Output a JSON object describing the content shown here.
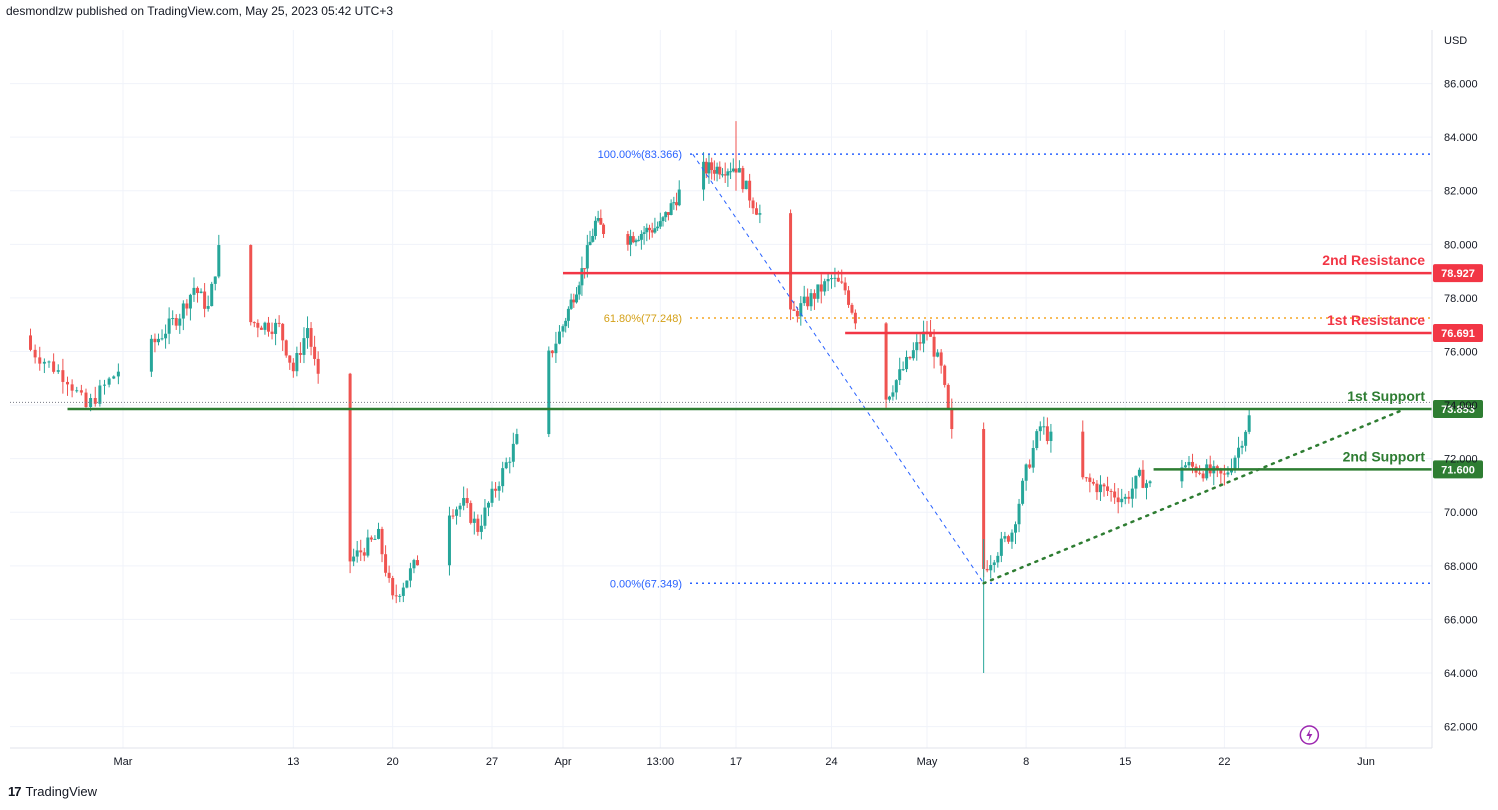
{
  "header": {
    "publisher_line": "desmondlzw published on TradingView.com, May 25, 2023 05:42 UTC+3"
  },
  "footer": {
    "brand": "TradingView",
    "logo_icon": "tradingview-logo-icon"
  },
  "colors": {
    "up": "#26a69a",
    "down": "#ef5350",
    "resistance": "#f23645",
    "support": "#2e7d32",
    "fib_blue": "#2962ff",
    "fib_orange": "#f5a623",
    "grid": "#f0f3fa",
    "lightning": "#9c27b0"
  },
  "chart_data": {
    "type": "candlestick",
    "currency": "USD",
    "ylim": [
      61.2,
      88.0
    ],
    "y_ticks": [
      "62.000",
      "64.000",
      "66.000",
      "68.000",
      "70.000",
      "72.000",
      "74.000",
      "76.000",
      "78.000",
      "80.000",
      "82.000",
      "84.000",
      "86.000"
    ],
    "x_ticks": [
      "Mar",
      "13",
      "20",
      "27",
      "Apr",
      "13:00",
      "17",
      "24",
      "May",
      "8",
      "15",
      "22",
      "Jun"
    ],
    "levels": [
      {
        "label": "2nd Resistance",
        "value": 78.927,
        "value_text": "78.927",
        "kind": "resistance"
      },
      {
        "label": "1st Resistance",
        "value": 76.691,
        "value_text": "76.691",
        "kind": "resistance"
      },
      {
        "label": "1st Support",
        "value": 73.853,
        "value_text": "73.853",
        "kind": "support"
      },
      {
        "label": "2nd Support",
        "value": 71.6,
        "value_text": "71.600",
        "kind": "support"
      }
    ],
    "fibonacci": [
      {
        "label": "100.00%(83.366)",
        "value": 83.366
      },
      {
        "label": "61.80%(77.248)",
        "value": 77.248
      },
      {
        "label": "0.00%(67.349)",
        "value": 67.349
      }
    ],
    "price_path": [
      [
        76.6,
        "Feb 23"
      ],
      [
        75.0,
        "Feb 26"
      ],
      [
        73.9,
        "Feb 27"
      ],
      [
        75.5,
        "Mar 1"
      ],
      [
        76.2,
        "Mar 3"
      ],
      [
        77.4,
        "Mar 5"
      ],
      [
        78.4,
        "Mar 6"
      ],
      [
        77.6,
        "Mar 7"
      ],
      [
        80.5,
        "Mar 8"
      ],
      [
        80.9,
        "Mar 9"
      ],
      [
        77.1,
        "Mar 10"
      ],
      [
        76.9,
        "Mar 12"
      ],
      [
        75.3,
        "Mar 13"
      ],
      [
        76.9,
        "Mar 14"
      ],
      [
        74.2,
        "Mar 15"
      ],
      [
        72.0,
        "Mar 16"
      ],
      [
        68.2,
        "Mar 17"
      ],
      [
        69.1,
        "Mar 19"
      ],
      [
        66.7,
        "Mar 20"
      ],
      [
        68.4,
        "Mar 22"
      ],
      [
        69.9,
        "Mar 23"
      ],
      [
        70.3,
        "Mar 25"
      ],
      [
        69.4,
        "Mar 26"
      ],
      [
        71.8,
        "Mar 28"
      ],
      [
        73.0,
        "Mar 29"
      ],
      [
        74.3,
        "Mar 30"
      ],
      [
        75.8,
        "Mar 31"
      ],
      [
        79.3,
        "Apr 3"
      ],
      [
        80.8,
        "Apr 4"
      ],
      [
        80.1,
        "Apr 6"
      ],
      [
        80.7,
        "Apr 10"
      ],
      [
        82.1,
        "Apr 12"
      ],
      [
        83.2,
        "Apr 13"
      ],
      [
        82.8,
        "Apr 14"
      ],
      [
        82.9,
        "Apr 17"
      ],
      [
        81.8,
        "Apr 18"
      ],
      [
        80.9,
        "Apr 19"
      ],
      [
        79.1,
        "Apr 20"
      ],
      [
        77.3,
        "Apr 21"
      ],
      [
        78.7,
        "Apr 24"
      ],
      [
        78.3,
        "Apr 25"
      ],
      [
        76.9,
        "Apr 26"
      ],
      [
        75.0,
        "Apr 27"
      ],
      [
        74.3,
        "Apr 28"
      ],
      [
        76.8,
        "May 1"
      ],
      [
        75.3,
        "May 2"
      ],
      [
        72.1,
        "May 3"
      ],
      [
        69.0,
        "May 4"
      ],
      [
        67.9,
        "May 5"
      ],
      [
        69.3,
        "May 7"
      ],
      [
        71.5,
        "May 8"
      ],
      [
        73.2,
        "May 9"
      ],
      [
        72.6,
        "May 10"
      ],
      [
        73.4,
        "May 11"
      ],
      [
        71.2,
        "May 12"
      ],
      [
        70.5,
        "May 15"
      ],
      [
        71.3,
        "May 16"
      ],
      [
        70.9,
        "May 17"
      ],
      [
        72.8,
        "May 18"
      ],
      [
        71.8,
        "May 19"
      ],
      [
        71.3,
        "May 22"
      ],
      [
        72.4,
        "May 23"
      ],
      [
        73.9,
        "May 24"
      ],
      [
        74.1,
        "May 25"
      ]
    ]
  }
}
